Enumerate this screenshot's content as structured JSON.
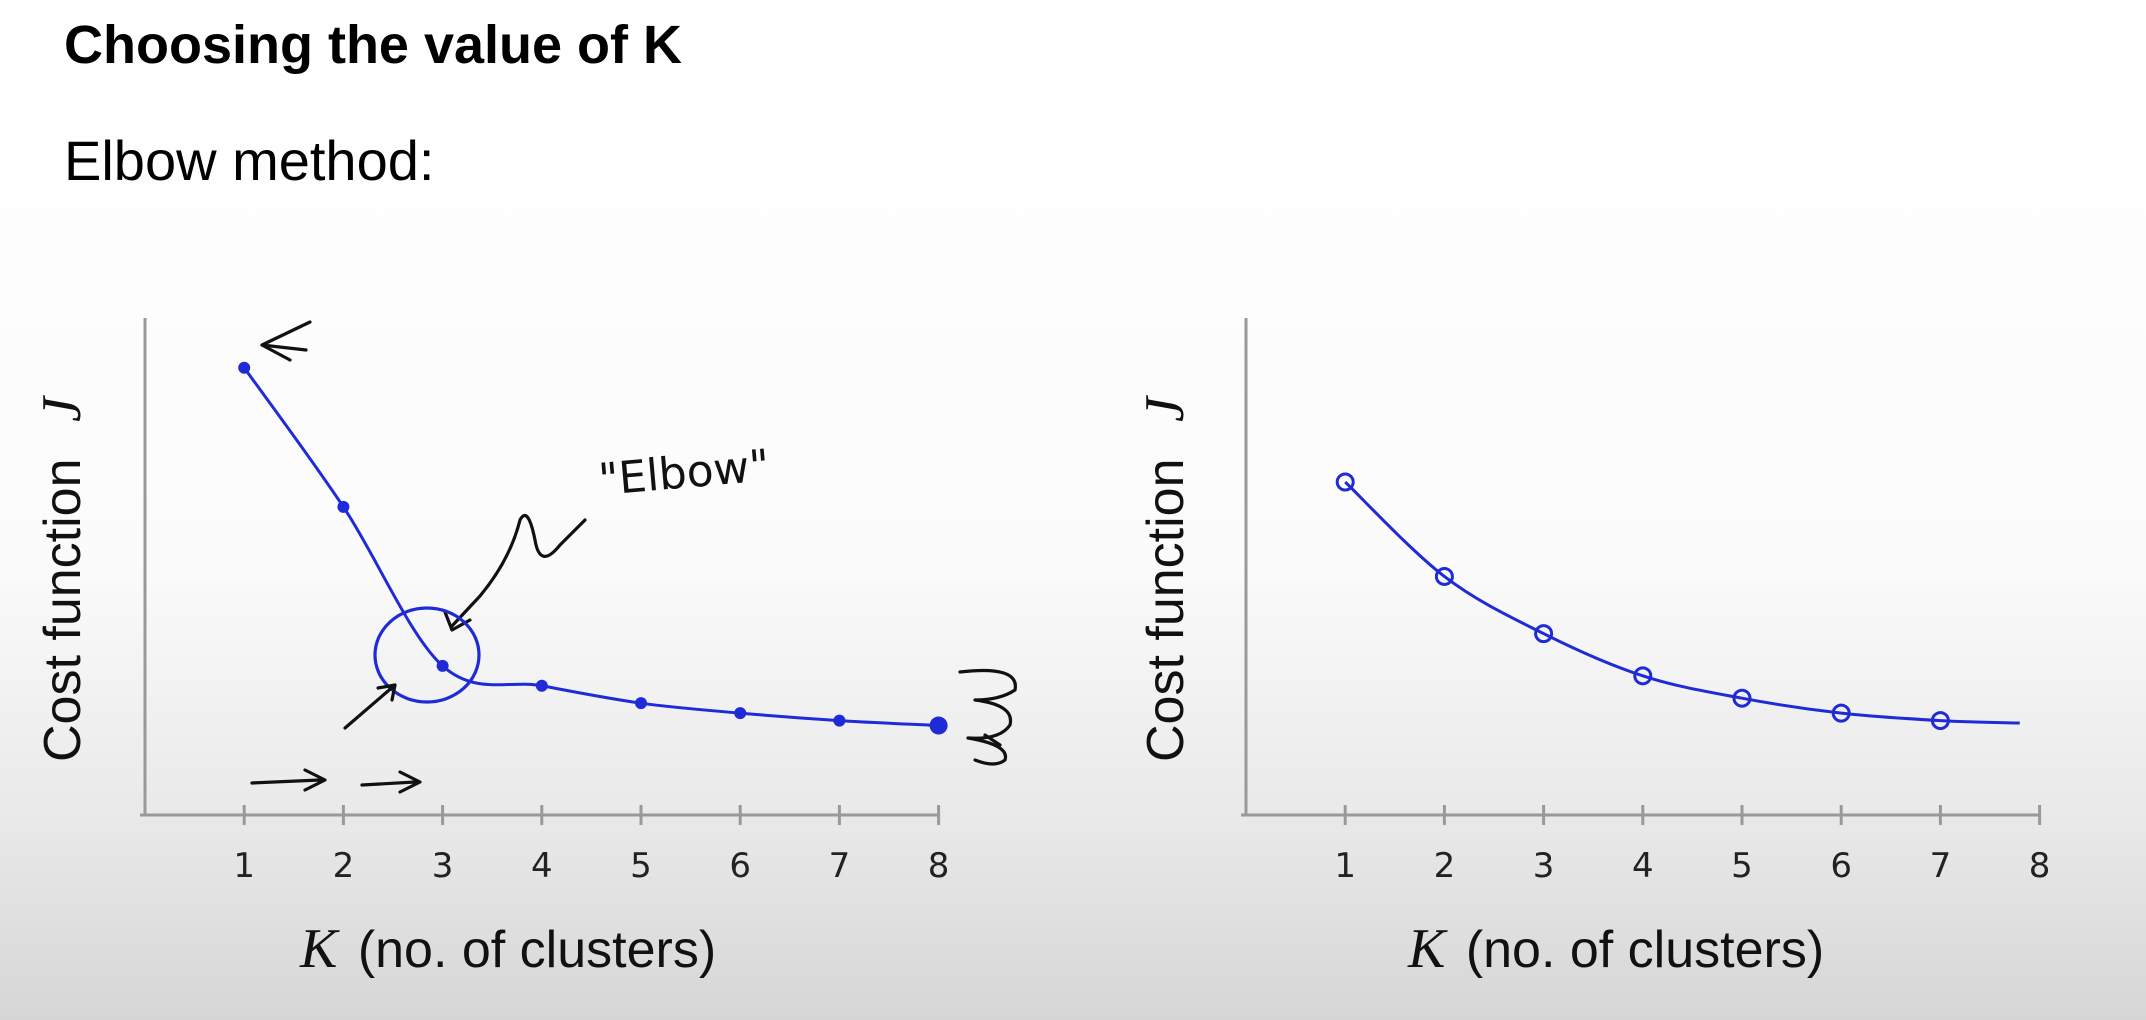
{
  "slide": {
    "title": "Choosing the value of K",
    "subtitle": "Elbow method:"
  },
  "colors": {
    "ink_blue": "#1f2bd6",
    "ink_black": "#111111",
    "axis": "#999999"
  },
  "chart_data": [
    {
      "type": "line",
      "title": "",
      "xlabel_symbol": "K",
      "xlabel": "(no. of clusters)",
      "ylabel": "Cost function",
      "ylabel_symbol": "J",
      "x": [
        1,
        2,
        3,
        4,
        5,
        6,
        7,
        8
      ],
      "y": [
        90,
        62,
        30,
        26,
        22.5,
        20.5,
        19,
        18
      ],
      "xlim": [
        0,
        8
      ],
      "ylim": [
        0,
        100
      ],
      "grid": false,
      "annotations": [
        "\"Elbow\""
      ]
    },
    {
      "type": "line",
      "title": "",
      "xlabel_symbol": "K",
      "xlabel": "(no. of clusters)",
      "ylabel": "Cost function",
      "ylabel_symbol": "J",
      "x": [
        1,
        2,
        3,
        4,
        5,
        6,
        7
      ],
      "y": [
        67,
        48,
        36.5,
        28,
        23.5,
        20.5,
        19
      ],
      "curve_end": {
        "x": 7.8,
        "y": 18.5
      },
      "xlim": [
        0,
        8
      ],
      "ylim": [
        0,
        100
      ],
      "grid": false
    }
  ]
}
